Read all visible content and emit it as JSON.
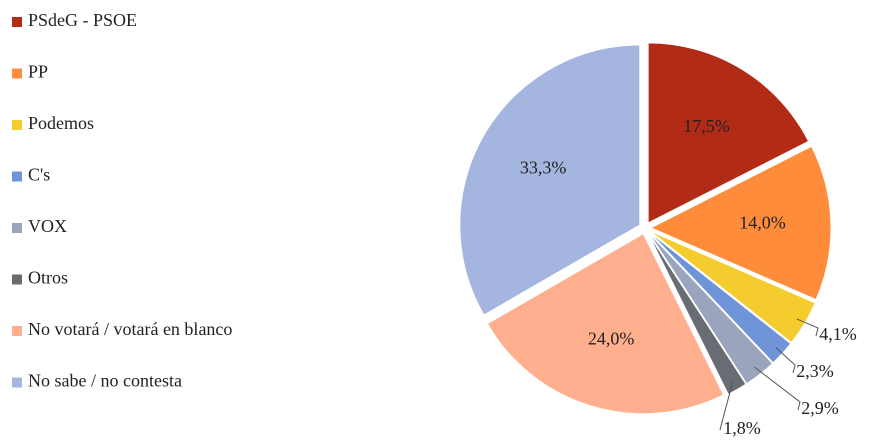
{
  "chart_data": {
    "type": "pie",
    "categories": [
      "PSdeG - PSOE",
      "PP",
      "Podemos",
      "C's",
      "VOX",
      "Otros",
      "No votará / votará en blanco",
      "No sabe / no contesta"
    ],
    "values": [
      17.5,
      14.0,
      4.1,
      2.3,
      2.9,
      1.8,
      24.0,
      33.3
    ],
    "value_labels": [
      "17,5%",
      "14,0%",
      "4,1%",
      "2,3%",
      "2,9%",
      "1,8%",
      "24,0%",
      "33,3%"
    ],
    "colors": [
      "#b22b17",
      "#ff8c3a",
      "#f5cc2e",
      "#6f95d8",
      "#9aa5bd",
      "#686c73",
      "#ffae8e",
      "#a4b6e0"
    ],
    "legend": "left"
  }
}
